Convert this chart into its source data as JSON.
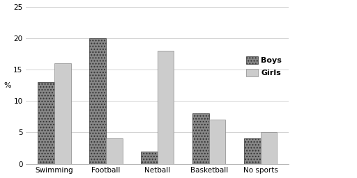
{
  "categories": [
    "Swimming",
    "Football",
    "Netball",
    "Basketball",
    "No sports"
  ],
  "boys": [
    13,
    20,
    2,
    8,
    4
  ],
  "girls": [
    16,
    4,
    18,
    7,
    5
  ],
  "ylabel": "%",
  "ylim": [
    0,
    25
  ],
  "yticks": [
    0,
    5,
    10,
    15,
    20,
    25
  ],
  "legend_labels": [
    "Boys",
    "Girls"
  ],
  "boys_facecolor": "#888888",
  "girls_facecolor": "#cccccc",
  "boys_hatch": "....",
  "girls_hatch": "===",
  "background_color": "#ffffff",
  "bar_width": 0.32,
  "axis_fontsize": 8,
  "tick_fontsize": 7.5,
  "legend_fontsize": 8
}
